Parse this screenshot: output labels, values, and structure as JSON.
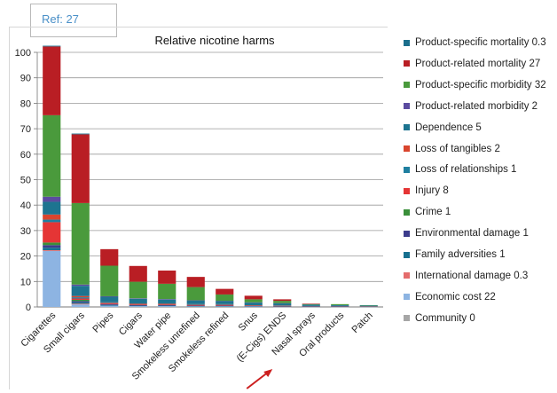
{
  "ref_label": "Ref: 27",
  "chart_data": {
    "type": "bar",
    "stacked": true,
    "title": "Relative nicotine harms",
    "xlabel": "",
    "ylabel": "",
    "ylim": [
      0,
      100
    ],
    "yticks": [
      0,
      10,
      20,
      30,
      40,
      50,
      60,
      70,
      80,
      90,
      100
    ],
    "grid": true,
    "legend": "right",
    "categories": [
      "Cigarettes",
      "Small cigars",
      "Pipes",
      "Cigars",
      "Water pipe",
      "Smokeless unrefined",
      "Smokeless refined",
      "Snus",
      "(E-Cigs) ENDS",
      "Nasal sprays",
      "Oral products",
      "Patch"
    ],
    "series": [
      {
        "name": "Community 0",
        "color": "#a6a6a6",
        "values": [
          0,
          0,
          0,
          0,
          0,
          0,
          0,
          0,
          0,
          0,
          0,
          0
        ]
      },
      {
        "name": "Economic cost 22",
        "color": "#8db4e2",
        "values": [
          22,
          1,
          0.5,
          0.3,
          0.3,
          0.2,
          0.2,
          0.2,
          0.1,
          0.1,
          0.1,
          0.1
        ]
      },
      {
        "name": "International damage 0.3",
        "color": "#e46c6c",
        "values": [
          0.3,
          0.3,
          0,
          0,
          0,
          0,
          0,
          0,
          0,
          0,
          0,
          0
        ]
      },
      {
        "name": "Family adversities 1",
        "color": "#17708f",
        "values": [
          1,
          0.5,
          0.3,
          0.2,
          0.2,
          0.2,
          0.2,
          0.1,
          0.1,
          0.1,
          0.1,
          0.1
        ]
      },
      {
        "name": "Environmental damage 1",
        "color": "#3c3c8c",
        "values": [
          1,
          0.5,
          0.3,
          0.2,
          0.2,
          0.1,
          0.1,
          0.1,
          0.1,
          0.1,
          0.1,
          0
        ]
      },
      {
        "name": "Crime 1",
        "color": "#3a8f3a",
        "values": [
          1,
          0.5,
          0,
          0,
          0,
          0,
          0,
          0,
          0,
          0,
          0,
          0
        ]
      },
      {
        "name": "Injury 8",
        "color": "#e53535",
        "values": [
          8,
          0.5,
          0.3,
          0.3,
          0.3,
          0.2,
          0.2,
          0.1,
          0.1,
          0.1,
          0.1,
          0.1
        ]
      },
      {
        "name": "Loss of relationships 1",
        "color": "#1f7fa0",
        "values": [
          1,
          0.5,
          0.2,
          0.2,
          0.2,
          0.2,
          0.2,
          0.1,
          0.1,
          0.1,
          0.1,
          0
        ]
      },
      {
        "name": "Loss of tangibles 2",
        "color": "#d9452e",
        "values": [
          2,
          0.5,
          0.2,
          0.2,
          0.2,
          0.2,
          0.2,
          0.1,
          0.1,
          0,
          0,
          0
        ]
      },
      {
        "name": "Dependence 5",
        "color": "#1d7490",
        "values": [
          5,
          4,
          2.2,
          1.8,
          1.5,
          1.4,
          1.2,
          1,
          0.8,
          0.4,
          0.2,
          0.3
        ]
      },
      {
        "name": "Product-related morbidity 2",
        "color": "#5b4ba0",
        "values": [
          2,
          0.5,
          0.2,
          0.2,
          0.2,
          0.1,
          0.1,
          0.1,
          0.1,
          0,
          0,
          0
        ]
      },
      {
        "name": "Product-specific morbidity 32",
        "color": "#4a9a3c",
        "values": [
          32,
          32,
          12,
          6.5,
          6,
          5.2,
          2.5,
          1.2,
          0.9,
          0.2,
          0.4,
          0.1
        ]
      },
      {
        "name": "Product-related mortality 27",
        "color": "#b91e24",
        "values": [
          27,
          27,
          6.5,
          6.2,
          5.2,
          4,
          2.2,
          1.4,
          0.6,
          0.2,
          0,
          0
        ]
      },
      {
        "name": "Product-specific mortality 0.3",
        "color": "#1a6e8c",
        "values": [
          0.3,
          0.3,
          0,
          0,
          0,
          0,
          0,
          0,
          0,
          0,
          0,
          0
        ]
      }
    ],
    "annotation": {
      "type": "arrow",
      "target": "(E-Cigs) ENDS",
      "color": "#cc1f1f"
    }
  },
  "legend_order": [
    13,
    12,
    11,
    10,
    9,
    8,
    7,
    6,
    5,
    4,
    3,
    2,
    1,
    0
  ]
}
